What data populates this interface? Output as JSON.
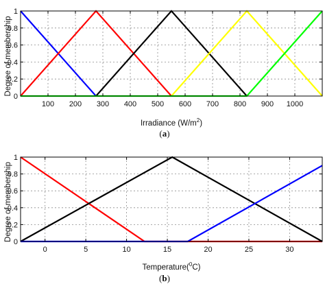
{
  "chart_data": [
    {
      "type": "line",
      "panel_label_open": "(",
      "panel_label": "a",
      "panel_label_close": ")",
      "xlabel": "Irradiance (W/m",
      "xlabel_sup": "2",
      "xlabel_tail": ")",
      "ylabel": "Degree of membership",
      "xlim": [
        0,
        1100
      ],
      "ylim": [
        0,
        1
      ],
      "xticks": [
        100,
        200,
        300,
        400,
        500,
        600,
        700,
        800,
        900,
        1000
      ],
      "yticks": [
        0,
        0.2,
        0.4,
        0.6,
        0.8,
        1
      ],
      "ytick_labels": [
        "0",
        "0.2",
        "0.4",
        "0.6",
        "0.8",
        "1"
      ],
      "grid": true,
      "series": [
        {
          "color": "#0000ff",
          "x": [
            0,
            275
          ],
          "y": [
            1,
            0
          ]
        },
        {
          "color": "#ff0000",
          "x": [
            0,
            275,
            550
          ],
          "y": [
            0,
            1,
            0
          ]
        },
        {
          "color": "#000000",
          "x": [
            275,
            550,
            825
          ],
          "y": [
            0,
            1,
            0
          ]
        },
        {
          "color": "#ffff00",
          "x": [
            550,
            825,
            1100
          ],
          "y": [
            0,
            1,
            0
          ]
        },
        {
          "color": "#00ff00",
          "x": [
            0,
            825,
            1100
          ],
          "y": [
            0,
            0,
            1
          ]
        }
      ]
    },
    {
      "type": "line",
      "panel_label_open": "(",
      "panel_label": "b",
      "panel_label_close": ")",
      "xlabel": "Temperature(",
      "xlabel_sup": "0",
      "xlabel_tail": "C)",
      "ylabel": "Degree of membership",
      "xlim": [
        -3,
        34
      ],
      "ylim": [
        0,
        1
      ],
      "xticks": [
        0,
        5,
        10,
        15,
        20,
        25,
        30
      ],
      "yticks": [
        0,
        0.2,
        0.4,
        0.6,
        0.8,
        1
      ],
      "ytick_labels": [
        "0",
        "0.2",
        "0.4",
        "0.6",
        "0.8",
        "1"
      ],
      "grid": true,
      "series": [
        {
          "color": "#ff0000",
          "x": [
            -3,
            12.2,
            34
          ],
          "y": [
            1,
            0,
            0
          ]
        },
        {
          "color": "#000000",
          "x": [
            -3,
            15.6,
            34
          ],
          "y": [
            0,
            1,
            0
          ]
        },
        {
          "color": "#0000ff",
          "x": [
            -3,
            17.5,
            34
          ],
          "y": [
            0,
            0,
            0.9
          ]
        }
      ]
    }
  ]
}
